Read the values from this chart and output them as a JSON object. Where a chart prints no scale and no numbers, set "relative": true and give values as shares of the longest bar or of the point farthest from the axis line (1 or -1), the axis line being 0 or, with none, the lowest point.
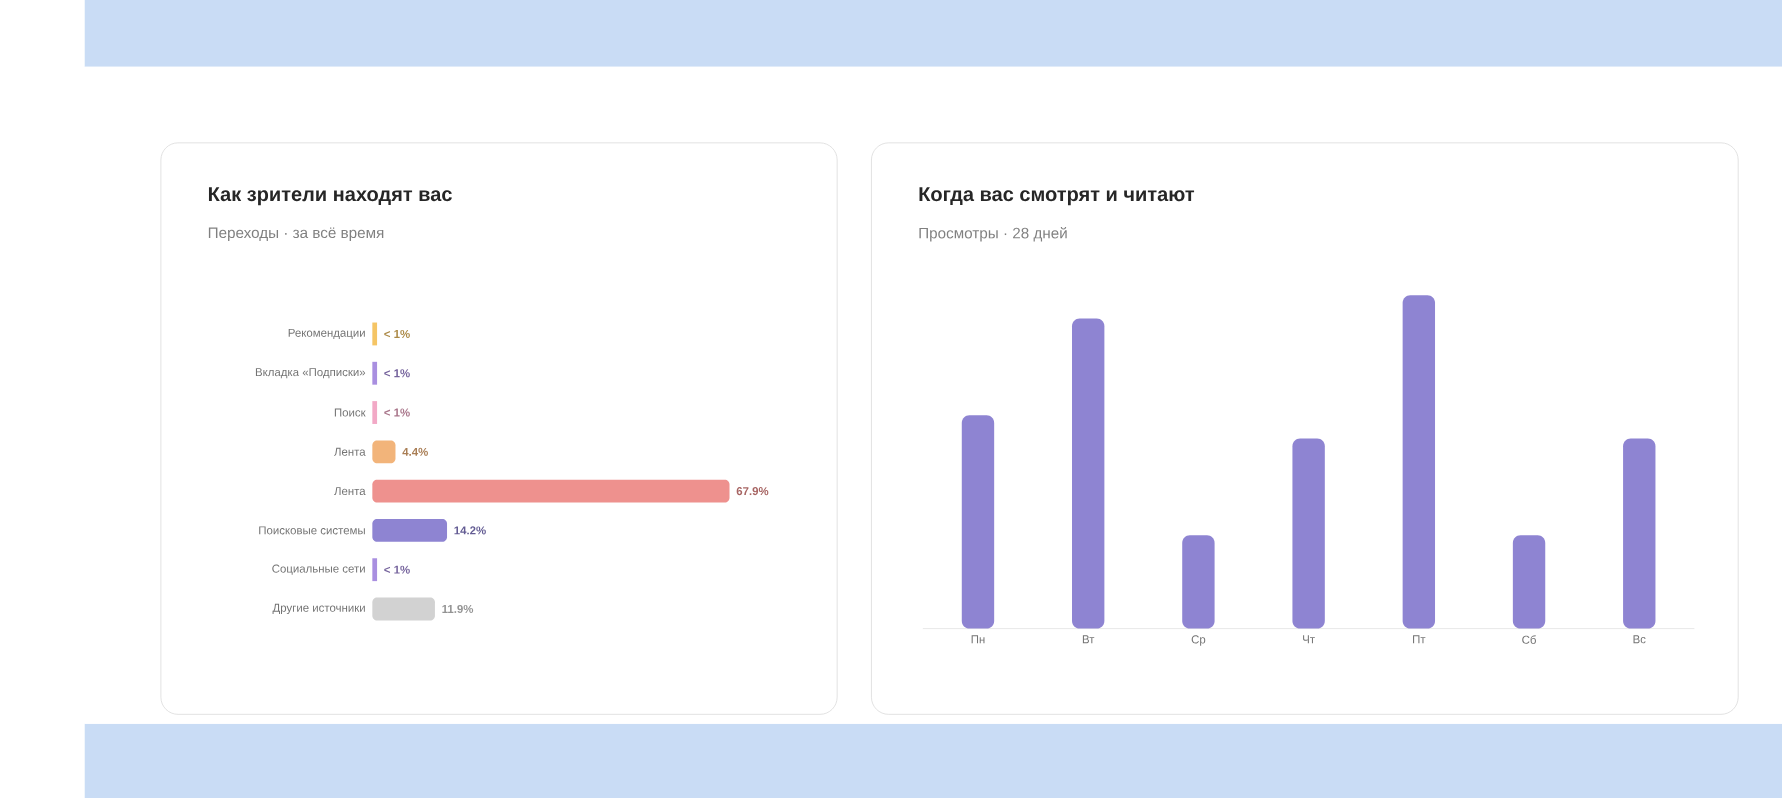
{
  "chart_data": [
    {
      "type": "bar",
      "orientation": "horizontal",
      "title": "Как зрители находят вас",
      "subtitle": "Переходы · за всё время",
      "categories": [
        "Рекомендации",
        "Вкладка «Подписки»",
        "Поиск",
        "Лента",
        "Лента",
        "Поисковые системы",
        "Социальные сети",
        "Другие источники"
      ],
      "values": [
        0.9,
        0.9,
        0.9,
        4.4,
        67.9,
        14.2,
        0.9,
        11.9
      ],
      "value_labels": [
        "< 1%",
        "< 1%",
        "< 1%",
        "4.4%",
        "67.9%",
        "14.2%",
        "< 1%",
        "11.9%"
      ],
      "colors": [
        "#f5c565",
        "#a98fe0",
        "#f2a9c6",
        "#f2b47a",
        "#ee918e",
        "#8e84d2",
        "#a98fe0",
        "#d2d2d2"
      ]
    },
    {
      "type": "bar",
      "relative": true,
      "title": "Когда вас смотрят и читают",
      "subtitle": "Просмотры · 28 дней",
      "categories": [
        "Пн",
        "Вт",
        "Ср",
        "Чт",
        "Пт",
        "Сб",
        "Вс"
      ],
      "values": [
        0.64,
        0.93,
        0.28,
        0.57,
        1,
        0.28,
        0.57
      ],
      "color": "#8e84d2"
    }
  ]
}
